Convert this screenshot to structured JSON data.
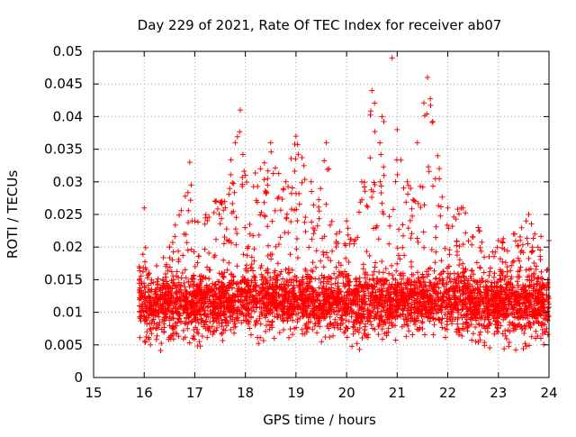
{
  "chart_data": {
    "type": "scatter",
    "title": "Day 229 of 2021, Rate Of TEC Index for receiver ab07",
    "xlabel": "GPS time / hours",
    "ylabel": "ROTI / TECUs",
    "xlim": [
      15,
      24
    ],
    "ylim": [
      0,
      0.05
    ],
    "x_ticks": [
      15,
      16,
      17,
      18,
      19,
      20,
      21,
      22,
      23,
      24
    ],
    "x_tick_labels": [
      "15",
      "16",
      "17",
      "18",
      "19",
      "20",
      "21",
      "22",
      "23",
      "24"
    ],
    "y_ticks": [
      0,
      0.005,
      0.01,
      0.015,
      0.02,
      0.025,
      0.03,
      0.035,
      0.04,
      0.045,
      0.05
    ],
    "y_tick_labels": [
      "0",
      "0.005",
      "0.01",
      "0.015",
      "0.02",
      "0.025",
      "0.03",
      "0.035",
      "0.04",
      "0.045",
      "0.05"
    ],
    "grid": true,
    "marker": "+",
    "color": "#ff0000",
    "series": [
      {
        "name": "ROTI",
        "x_range": [
          15.9,
          24.0
        ],
        "envelope": [
          [
            15.9,
            0.006,
            0.017
          ],
          [
            16.0,
            0.005,
            0.026
          ],
          [
            16.1,
            0.004,
            0.016
          ],
          [
            16.5,
            0.004,
            0.02
          ],
          [
            16.9,
            0.005,
            0.033
          ],
          [
            17.0,
            0.004,
            0.024
          ],
          [
            17.4,
            0.005,
            0.027
          ],
          [
            17.8,
            0.006,
            0.036
          ],
          [
            17.9,
            0.007,
            0.041
          ],
          [
            18.0,
            0.006,
            0.031
          ],
          [
            18.3,
            0.005,
            0.032
          ],
          [
            18.5,
            0.006,
            0.036
          ],
          [
            18.8,
            0.006,
            0.03
          ],
          [
            19.0,
            0.006,
            0.037
          ],
          [
            19.3,
            0.006,
            0.03
          ],
          [
            19.6,
            0.005,
            0.036
          ],
          [
            19.8,
            0.006,
            0.022
          ],
          [
            20.0,
            0.005,
            0.024
          ],
          [
            20.3,
            0.004,
            0.03
          ],
          [
            20.5,
            0.005,
            0.044
          ],
          [
            20.7,
            0.005,
            0.04
          ],
          [
            20.9,
            0.005,
            0.049
          ],
          [
            21.0,
            0.006,
            0.038
          ],
          [
            21.2,
            0.006,
            0.03
          ],
          [
            21.4,
            0.006,
            0.036
          ],
          [
            21.6,
            0.006,
            0.046
          ],
          [
            21.8,
            0.006,
            0.034
          ],
          [
            22.0,
            0.006,
            0.026
          ],
          [
            22.3,
            0.006,
            0.026
          ],
          [
            22.6,
            0.005,
            0.023
          ],
          [
            23.0,
            0.004,
            0.021
          ],
          [
            23.3,
            0.004,
            0.022
          ],
          [
            23.6,
            0.004,
            0.025
          ],
          [
            24.0,
            0.005,
            0.021
          ]
        ],
        "typical_range": [
          0.007,
          0.016
        ]
      }
    ]
  }
}
